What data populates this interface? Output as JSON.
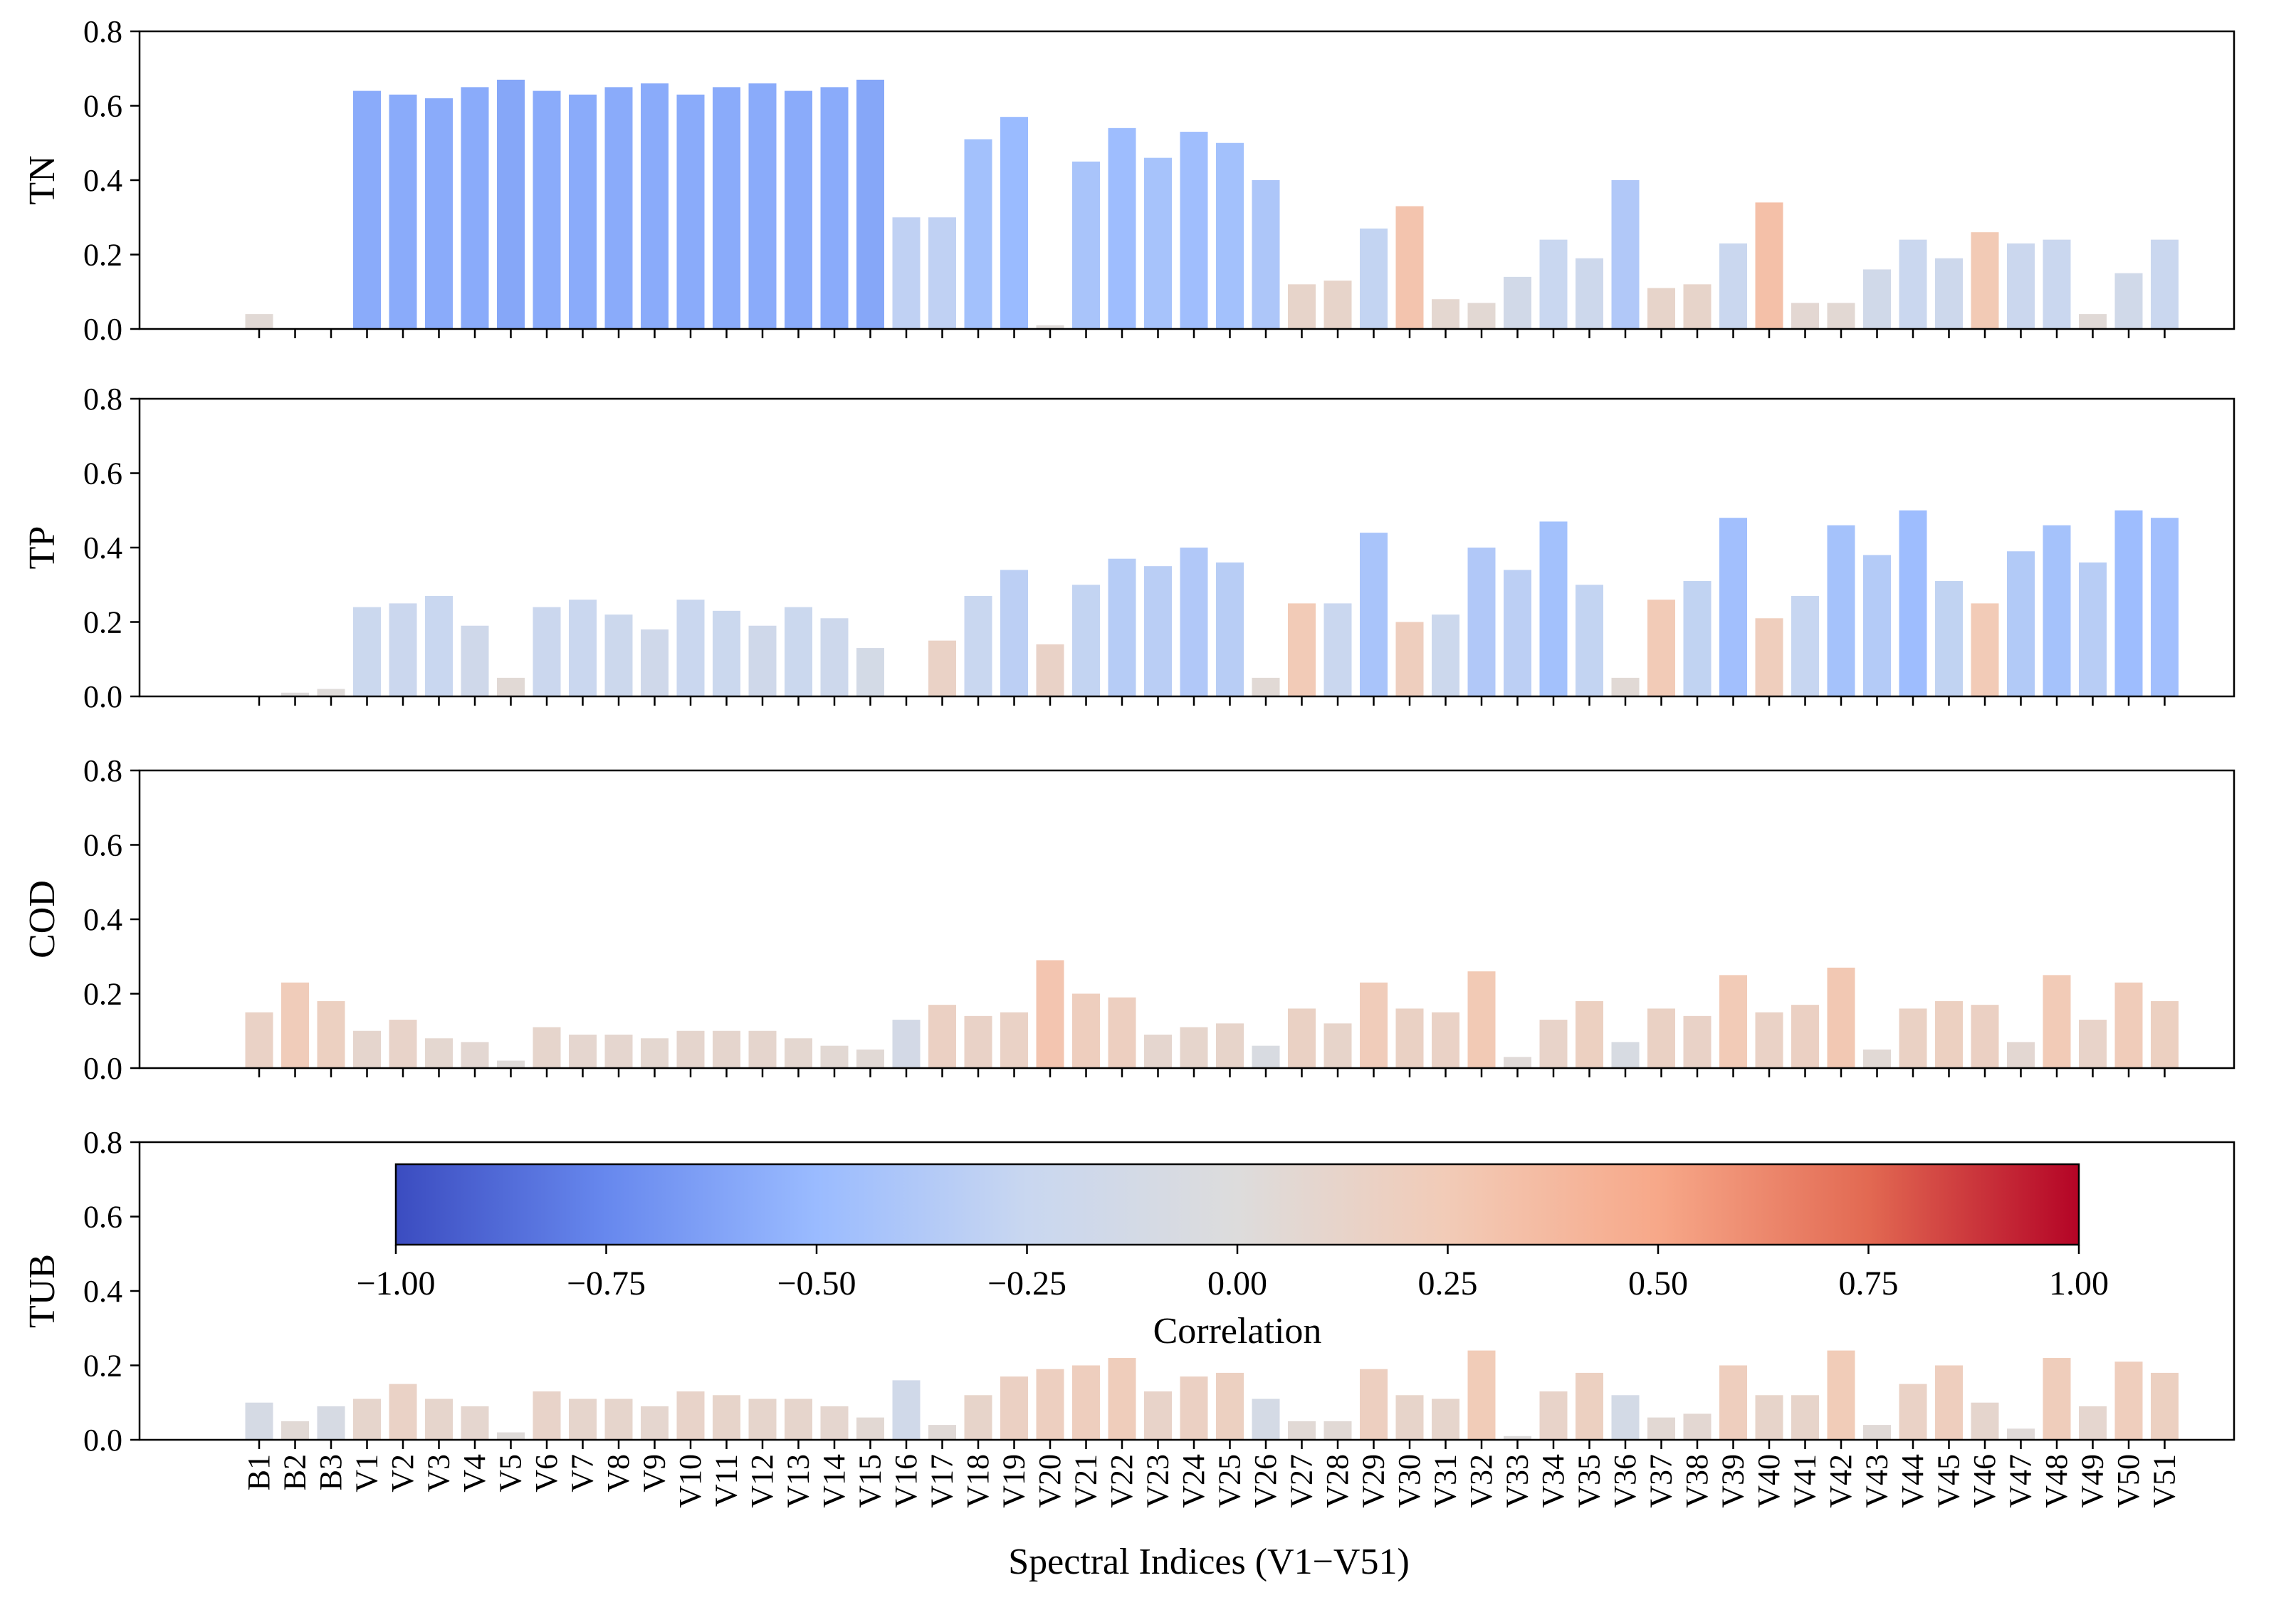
{
  "chart_data": {
    "type": "bar",
    "xlabel": "Spectral Indices (V1−V51)",
    "categories": [
      "B1",
      "B2",
      "B3",
      "V1",
      "V2",
      "V3",
      "V4",
      "V5",
      "V6",
      "V7",
      "V8",
      "V9",
      "V10",
      "V11",
      "V12",
      "V13",
      "V14",
      "V15",
      "V16",
      "V17",
      "V18",
      "V19",
      "V20",
      "V21",
      "V22",
      "V23",
      "V24",
      "V25",
      "V26",
      "V27",
      "V28",
      "V29",
      "V30",
      "V31",
      "V32",
      "V33",
      "V34",
      "V35",
      "V36",
      "V37",
      "V38",
      "V39",
      "V40",
      "V41",
      "V42",
      "V43",
      "V44",
      "V45",
      "V46",
      "V47",
      "V48",
      "V49",
      "V50",
      "V51"
    ],
    "ylim": [
      0,
      0.8
    ],
    "yticks": [
      "0.0",
      "0.2",
      "0.4",
      "0.6",
      "0.8"
    ],
    "panels": [
      {
        "ylabel": "TN",
        "values": [
          0.04,
          0,
          0,
          0.64,
          0.63,
          0.62,
          0.65,
          0.67,
          0.64,
          0.63,
          0.65,
          0.66,
          0.63,
          0.65,
          0.66,
          0.64,
          0.65,
          0.67,
          0.3,
          0.3,
          0.51,
          0.57,
          0.01,
          0.45,
          0.54,
          0.46,
          0.53,
          0.5,
          0.4,
          0.12,
          0.13,
          0.27,
          0.33,
          0.08,
          0.07,
          0.14,
          0.24,
          0.19,
          0.4,
          0.11,
          0.12,
          0.23,
          0.34,
          0.07,
          0.07,
          0.16,
          0.24,
          0.19,
          0.26,
          0.23,
          0.24,
          0.04,
          0.15,
          0.24
        ],
        "correlations": [
          0.05,
          0,
          0,
          -0.58,
          -0.58,
          -0.58,
          -0.58,
          -0.6,
          -0.58,
          -0.58,
          -0.58,
          -0.58,
          -0.58,
          -0.58,
          -0.58,
          -0.58,
          -0.58,
          -0.6,
          -0.3,
          -0.3,
          -0.45,
          -0.5,
          0.02,
          -0.42,
          -0.48,
          -0.43,
          -0.47,
          -0.45,
          -0.4,
          0.12,
          0.12,
          -0.28,
          0.3,
          0.08,
          0.06,
          -0.15,
          -0.25,
          -0.2,
          -0.38,
          0.12,
          0.12,
          -0.24,
          0.33,
          0.07,
          0.06,
          -0.16,
          -0.24,
          -0.2,
          0.26,
          -0.23,
          -0.24,
          0.04,
          -0.16,
          -0.24
        ]
      },
      {
        "ylabel": "TP",
        "values": [
          0,
          0.01,
          0.02,
          0.24,
          0.25,
          0.27,
          0.19,
          0.05,
          0.24,
          0.26,
          0.22,
          0.18,
          0.26,
          0.23,
          0.19,
          0.24,
          0.21,
          0.13,
          0,
          0.15,
          0.27,
          0.34,
          0.14,
          0.3,
          0.37,
          0.35,
          0.4,
          0.36,
          0.05,
          0.25,
          0.25,
          0.44,
          0.2,
          0.22,
          0.4,
          0.34,
          0.47,
          0.3,
          0.05,
          0.26,
          0.31,
          0.48,
          0.21,
          0.27,
          0.46,
          0.38,
          0.5,
          0.31,
          0.25,
          0.39,
          0.46,
          0.36,
          0.5,
          0.48
        ],
        "correlations": [
          0,
          0.01,
          0.02,
          -0.22,
          -0.23,
          -0.25,
          -0.18,
          0.05,
          -0.23,
          -0.24,
          -0.21,
          -0.18,
          -0.24,
          -0.22,
          -0.18,
          -0.22,
          -0.2,
          -0.12,
          0,
          0.15,
          -0.25,
          -0.32,
          0.14,
          -0.28,
          -0.35,
          -0.33,
          -0.38,
          -0.34,
          0.05,
          0.25,
          -0.24,
          -0.42,
          0.2,
          -0.21,
          -0.38,
          -0.32,
          -0.45,
          -0.28,
          0.05,
          0.25,
          -0.29,
          -0.46,
          0.21,
          -0.26,
          -0.44,
          -0.36,
          -0.48,
          -0.29,
          0.25,
          -0.37,
          -0.44,
          -0.34,
          -0.48,
          -0.46
        ]
      },
      {
        "ylabel": "COD",
        "values": [
          0.15,
          0.23,
          0.18,
          0.1,
          0.13,
          0.08,
          0.07,
          0.02,
          0.11,
          0.09,
          0.09,
          0.08,
          0.1,
          0.1,
          0.1,
          0.08,
          0.06,
          0.05,
          0.13,
          0.17,
          0.14,
          0.15,
          0.29,
          0.2,
          0.19,
          0.09,
          0.11,
          0.12,
          0.06,
          0.16,
          0.12,
          0.23,
          0.16,
          0.15,
          0.26,
          0.03,
          0.13,
          0.18,
          0.07,
          0.16,
          0.14,
          0.25,
          0.15,
          0.17,
          0.27,
          0.05,
          0.16,
          0.18,
          0.17,
          0.07,
          0.25,
          0.13,
          0.23,
          0.18
        ],
        "correlations": [
          0.15,
          0.23,
          0.18,
          0.1,
          0.13,
          0.08,
          0.07,
          0.02,
          0.11,
          0.09,
          0.09,
          0.08,
          0.1,
          0.1,
          0.1,
          0.08,
          0.06,
          0.05,
          -0.13,
          0.17,
          0.14,
          0.15,
          0.29,
          0.2,
          0.19,
          0.09,
          0.11,
          0.12,
          -0.06,
          0.16,
          0.12,
          0.23,
          0.16,
          0.15,
          0.26,
          0.03,
          0.13,
          0.18,
          -0.07,
          0.16,
          0.14,
          0.25,
          0.15,
          0.17,
          0.27,
          0.05,
          0.16,
          0.18,
          0.17,
          0.07,
          0.25,
          0.13,
          0.23,
          0.18
        ]
      },
      {
        "ylabel": "TUB",
        "values": [
          0.1,
          0.05,
          0.09,
          0.11,
          0.15,
          0.11,
          0.09,
          0.02,
          0.13,
          0.11,
          0.11,
          0.09,
          0.13,
          0.12,
          0.11,
          0.11,
          0.09,
          0.06,
          0.16,
          0.04,
          0.12,
          0.17,
          0.19,
          0.2,
          0.22,
          0.13,
          0.17,
          0.18,
          0.11,
          0.05,
          0.05,
          0.19,
          0.12,
          0.11,
          0.24,
          0.01,
          0.13,
          0.18,
          0.12,
          0.06,
          0.07,
          0.2,
          0.12,
          0.12,
          0.24,
          0.04,
          0.15,
          0.2,
          0.1,
          0.03,
          0.22,
          0.09,
          0.21,
          0.18
        ],
        "correlations": [
          -0.1,
          0.05,
          -0.09,
          0.11,
          0.15,
          0.11,
          0.09,
          0.02,
          0.13,
          0.11,
          0.11,
          0.09,
          0.13,
          0.12,
          0.11,
          0.11,
          0.09,
          0.06,
          -0.16,
          0.04,
          0.12,
          0.17,
          0.19,
          0.2,
          0.22,
          0.13,
          0.17,
          0.18,
          -0.11,
          0.05,
          0.05,
          0.19,
          0.12,
          0.11,
          0.24,
          0.01,
          0.13,
          0.18,
          -0.12,
          0.06,
          0.07,
          0.2,
          0.12,
          0.12,
          0.24,
          0.04,
          0.15,
          0.2,
          0.1,
          0.03,
          0.22,
          0.09,
          0.21,
          0.18
        ]
      }
    ],
    "colorbar": {
      "label": "Correlation",
      "range": [
        -1,
        1
      ],
      "ticks": [
        "−1.00",
        "−0.75",
        "−0.50",
        "−0.25",
        "0.00",
        "0.25",
        "0.50",
        "0.75",
        "1.00"
      ],
      "colormap": [
        "#3b4cc0",
        "#6788ee",
        "#9abbff",
        "#c9d7f0",
        "#dddcdc",
        "#f2cbb7",
        "#f7a889",
        "#e26952",
        "#b40426"
      ],
      "placement": "inside-bottom-panel"
    }
  }
}
